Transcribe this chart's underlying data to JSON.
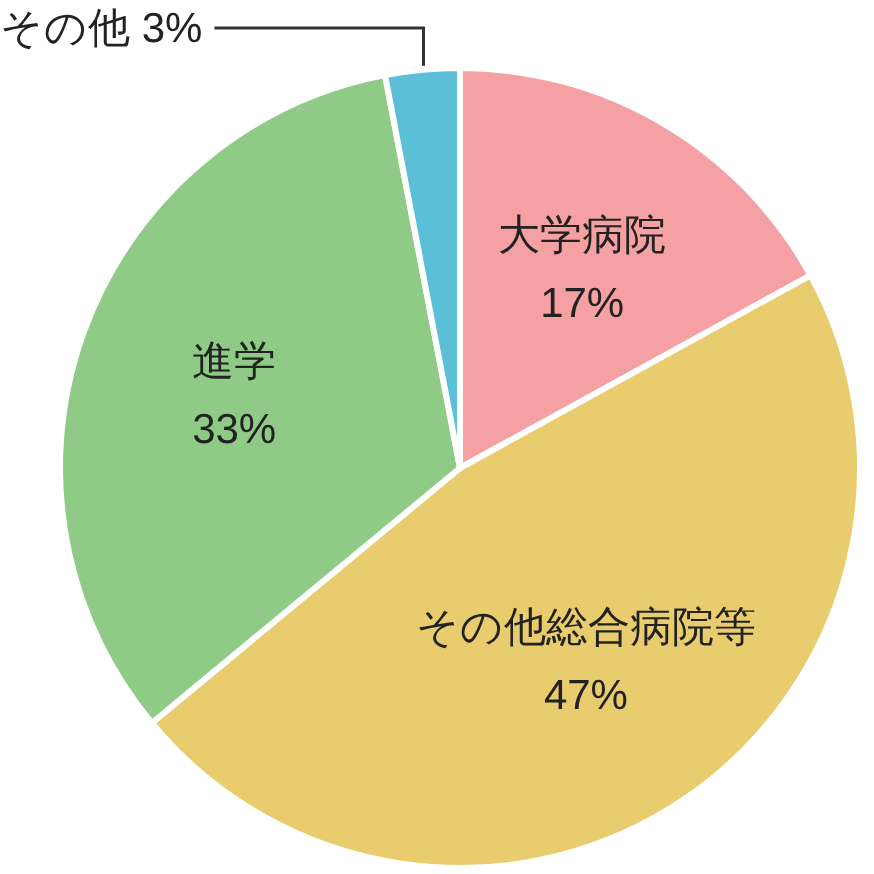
{
  "chart_data": {
    "type": "pie",
    "categories": [
      "大学病院",
      "その他総合病院等",
      "進学",
      "その他"
    ],
    "values": [
      17,
      47,
      33,
      3
    ],
    "value_labels": [
      "17%",
      "47%",
      "33%",
      "3%"
    ],
    "colors": [
      "#f5a0a2",
      "#e8cc6e",
      "#8fcb86",
      "#5bbfd8"
    ]
  }
}
